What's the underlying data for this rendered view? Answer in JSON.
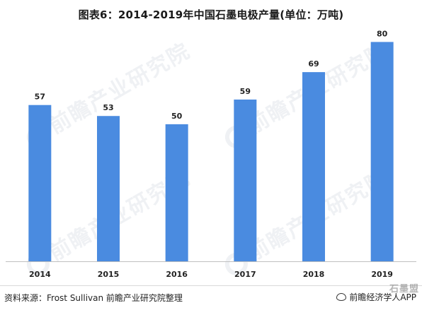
{
  "title": "图表6：2014-2019年中国石墨电极产量(单位：万吨)",
  "source": "资料来源：Frost Sullivan   前瞻产业研究院整理",
  "brand": "前瞻经济学人APP",
  "stamp_text": "石墨盟",
  "watermark_text": "前瞻产业研究院",
  "colors": {
    "bar": "#4a8be0",
    "axis": "#bfbfbf"
  },
  "chart_data": {
    "type": "bar",
    "title": "图表6：2014-2019年中国石墨电极产量(单位：万吨)",
    "categories": [
      "2014",
      "2015",
      "2016",
      "2017",
      "2018",
      "2019"
    ],
    "values": [
      57,
      53,
      50,
      59,
      69,
      80
    ],
    "xlabel": "",
    "ylabel": "",
    "ylim": [
      0,
      85
    ],
    "grid": false,
    "legend": "none",
    "data_labels": true
  }
}
